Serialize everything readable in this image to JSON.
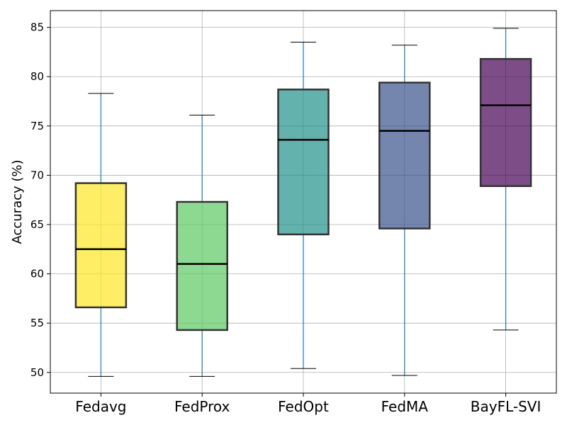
{
  "chart_data": {
    "type": "box",
    "title": "",
    "xlabel": "",
    "ylabel": "Accuracy (%)",
    "ylim": [
      47.9,
      86.7
    ],
    "yticks": [
      50,
      55,
      60,
      65,
      70,
      75,
      80,
      85
    ],
    "grid": true,
    "categories": [
      "Fedavg",
      "FedProx",
      "FedOpt",
      "FedMA",
      "BayFL-SVI"
    ],
    "boxes": [
      {
        "label": "Fedavg",
        "whislo": 49.6,
        "q1": 56.6,
        "med": 62.5,
        "q3": 69.2,
        "whishi": 78.3,
        "color": "#fde725"
      },
      {
        "label": "FedProx",
        "whislo": 49.6,
        "q1": 54.3,
        "med": 61.0,
        "q3": 67.3,
        "whishi": 76.1,
        "color": "#5ec962"
      },
      {
        "label": "FedOpt",
        "whislo": 50.4,
        "q1": 64.0,
        "med": 73.6,
        "q3": 78.7,
        "whishi": 83.5,
        "color": "#21918c"
      },
      {
        "label": "FedMA",
        "whislo": 49.7,
        "q1": 64.6,
        "med": 74.5,
        "q3": 79.4,
        "whishi": 83.2,
        "color": "#3b528b"
      },
      {
        "label": "BayFL-SVI",
        "whislo": 54.3,
        "q1": 68.9,
        "med": 77.1,
        "q3": 81.8,
        "whishi": 84.9,
        "color": "#440154"
      }
    ],
    "whisker_color": "#1f77b4",
    "box_edge_color": "#333333",
    "median_color": "#000000",
    "grid_color": "#b0b0b0"
  }
}
